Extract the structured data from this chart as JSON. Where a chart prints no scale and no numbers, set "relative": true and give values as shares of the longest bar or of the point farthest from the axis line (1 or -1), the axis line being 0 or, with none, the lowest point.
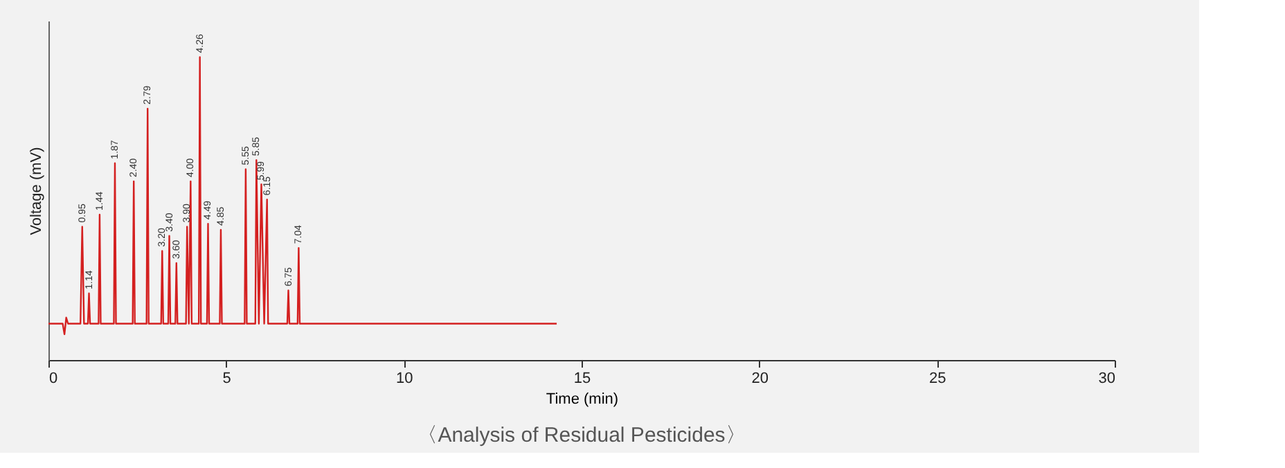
{
  "chart_data": {
    "type": "line",
    "relative": true,
    "xlabel": "Time (min)",
    "ylabel": "Voltage (mV)",
    "title": "〈Analysis of Residual Pesticides〉",
    "xlim": [
      0,
      30
    ],
    "xticks": [
      0,
      5,
      10,
      15,
      20,
      25,
      30
    ],
    "tick_labels": "x",
    "grid": false,
    "marker": "none",
    "line_style": "solid",
    "x": [
      0.0,
      0.4,
      0.45,
      0.5,
      0.55,
      0.9,
      0.95,
      1.0,
      1.11,
      1.14,
      1.17,
      1.41,
      1.44,
      1.47,
      1.84,
      1.87,
      1.9,
      2.37,
      2.4,
      2.43,
      2.76,
      2.79,
      2.82,
      3.17,
      3.2,
      3.23,
      3.37,
      3.4,
      3.43,
      3.57,
      3.6,
      3.63,
      3.87,
      3.9,
      3.95,
      4.0,
      4.03,
      4.23,
      4.26,
      4.29,
      4.46,
      4.49,
      4.52,
      4.82,
      4.85,
      4.88,
      5.52,
      5.55,
      5.58,
      5.82,
      5.85,
      5.92,
      5.99,
      6.07,
      6.15,
      6.18,
      6.72,
      6.75,
      6.78,
      7.01,
      7.04,
      7.07,
      14.3
    ],
    "series": [
      {
        "color": "#d42020",
        "values": [
          0.12,
          0.12,
          0.085,
          0.14,
          0.12,
          0.12,
          0.44,
          0.12,
          0.12,
          0.22,
          0.12,
          0.12,
          0.48,
          0.12,
          0.12,
          0.65,
          0.12,
          0.12,
          0.59,
          0.12,
          0.12,
          0.83,
          0.12,
          0.12,
          0.36,
          0.12,
          0.12,
          0.41,
          0.12,
          0.12,
          0.32,
          0.12,
          0.12,
          0.44,
          0.12,
          0.59,
          0.12,
          0.12,
          1.0,
          0.12,
          0.12,
          0.45,
          0.12,
          0.12,
          0.43,
          0.12,
          0.12,
          0.63,
          0.12,
          0.12,
          0.66,
          0.12,
          0.58,
          0.12,
          0.53,
          0.12,
          0.12,
          0.23,
          0.12,
          0.12,
          0.37,
          0.12,
          0.12
        ]
      }
    ],
    "annotations": [
      {
        "text": "0.95",
        "x": 0.95,
        "y": 0.44
      },
      {
        "text": "1.14",
        "x": 1.14,
        "y": 0.22
      },
      {
        "text": "1.44",
        "x": 1.44,
        "y": 0.48
      },
      {
        "text": "1.87",
        "x": 1.87,
        "y": 0.65
      },
      {
        "text": "2.40",
        "x": 2.4,
        "y": 0.59
      },
      {
        "text": "2.79",
        "x": 2.79,
        "y": 0.83
      },
      {
        "text": "3.20",
        "x": 3.2,
        "y": 0.36
      },
      {
        "text": "3.40",
        "x": 3.4,
        "y": 0.41
      },
      {
        "text": "3.60",
        "x": 3.6,
        "y": 0.32
      },
      {
        "text": "3.90",
        "x": 3.9,
        "y": 0.44
      },
      {
        "text": "4.00",
        "x": 4.0,
        "y": 0.59
      },
      {
        "text": "4.26",
        "x": 4.26,
        "y": 1.0
      },
      {
        "text": "4.49",
        "x": 4.49,
        "y": 0.45
      },
      {
        "text": "4.85",
        "x": 4.85,
        "y": 0.43
      },
      {
        "text": "5.55",
        "x": 5.55,
        "y": 0.63
      },
      {
        "text": "5.85",
        "x": 5.85,
        "y": 0.66
      },
      {
        "text": "5.99",
        "x": 5.99,
        "y": 0.58
      },
      {
        "text": "6.15",
        "x": 6.15,
        "y": 0.53
      },
      {
        "text": "6.75",
        "x": 6.75,
        "y": 0.23
      },
      {
        "text": "7.04",
        "x": 7.04,
        "y": 0.37
      }
    ]
  }
}
